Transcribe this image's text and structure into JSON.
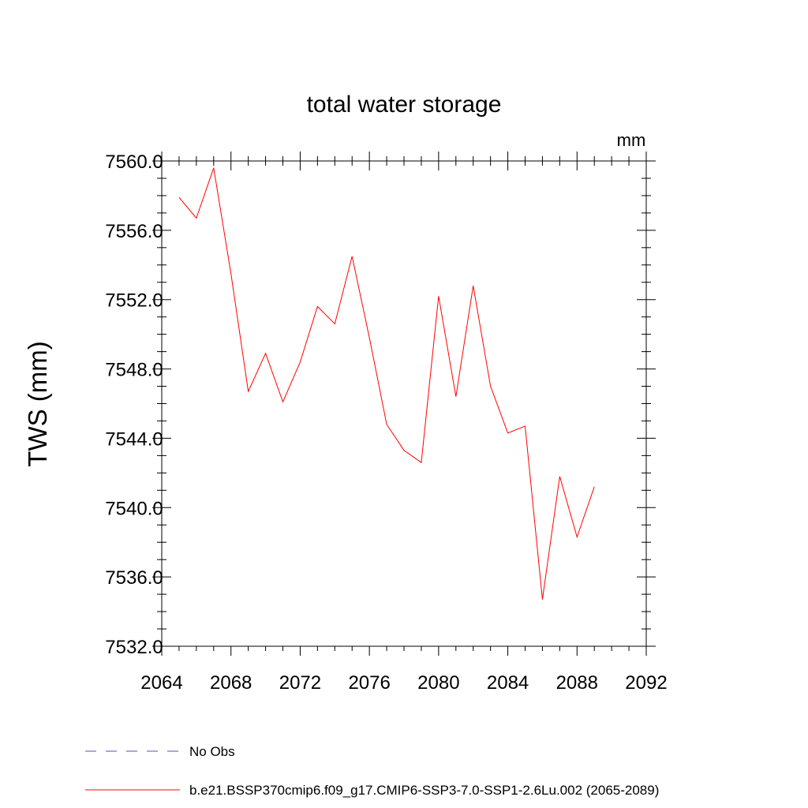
{
  "chart_data": {
    "type": "line",
    "title": "total water storage",
    "units": "mm",
    "ylabel": "TWS  (mm)",
    "xlabel": "",
    "xlim": [
      2064,
      2092
    ],
    "ylim": [
      7532,
      7560
    ],
    "x_ticks": [
      "2064",
      "2068",
      "2072",
      "2076",
      "2080",
      "2084",
      "2088",
      "2092"
    ],
    "y_ticks": [
      "7532.0",
      "7536.0",
      "7540.0",
      "7544.0",
      "7548.0",
      "7552.0",
      "7556.0",
      "7560.0"
    ],
    "series": [
      {
        "name": "b.e21.BSSP370cmip6.f09_g17.CMIP6-SSP3-7.0-SSP1-2.6Lu.002 (2065-2089)",
        "color": "#ff0000",
        "style": "solid",
        "x": [
          2065,
          2066,
          2067,
          2068,
          2069,
          2070,
          2071,
          2072,
          2073,
          2074,
          2075,
          2076,
          2077,
          2078,
          2079,
          2080,
          2081,
          2082,
          2083,
          2084,
          2085,
          2086,
          2087,
          2088,
          2089
        ],
        "y": [
          7557.9,
          7556.7,
          7559.6,
          7553.5,
          7546.7,
          7548.9,
          7546.1,
          7548.4,
          7551.6,
          7550.6,
          7554.5,
          7549.8,
          7544.8,
          7543.3,
          7542.6,
          7552.2,
          7546.4,
          7552.8,
          7547.0,
          7544.3,
          7544.7,
          7534.7,
          7541.8,
          7538.3,
          7541.2
        ]
      }
    ],
    "legend": [
      {
        "label": "No Obs",
        "color": "#5c4fa6",
        "style": "dashed"
      },
      {
        "label": "b.e21.BSSP370cmip6.f09_g17.CMIP6-SSP3-7.0-SSP1-2.6Lu.002 (2065-2089)",
        "color": "#ff0000",
        "style": "solid"
      }
    ],
    "legend_position": "bottom"
  }
}
